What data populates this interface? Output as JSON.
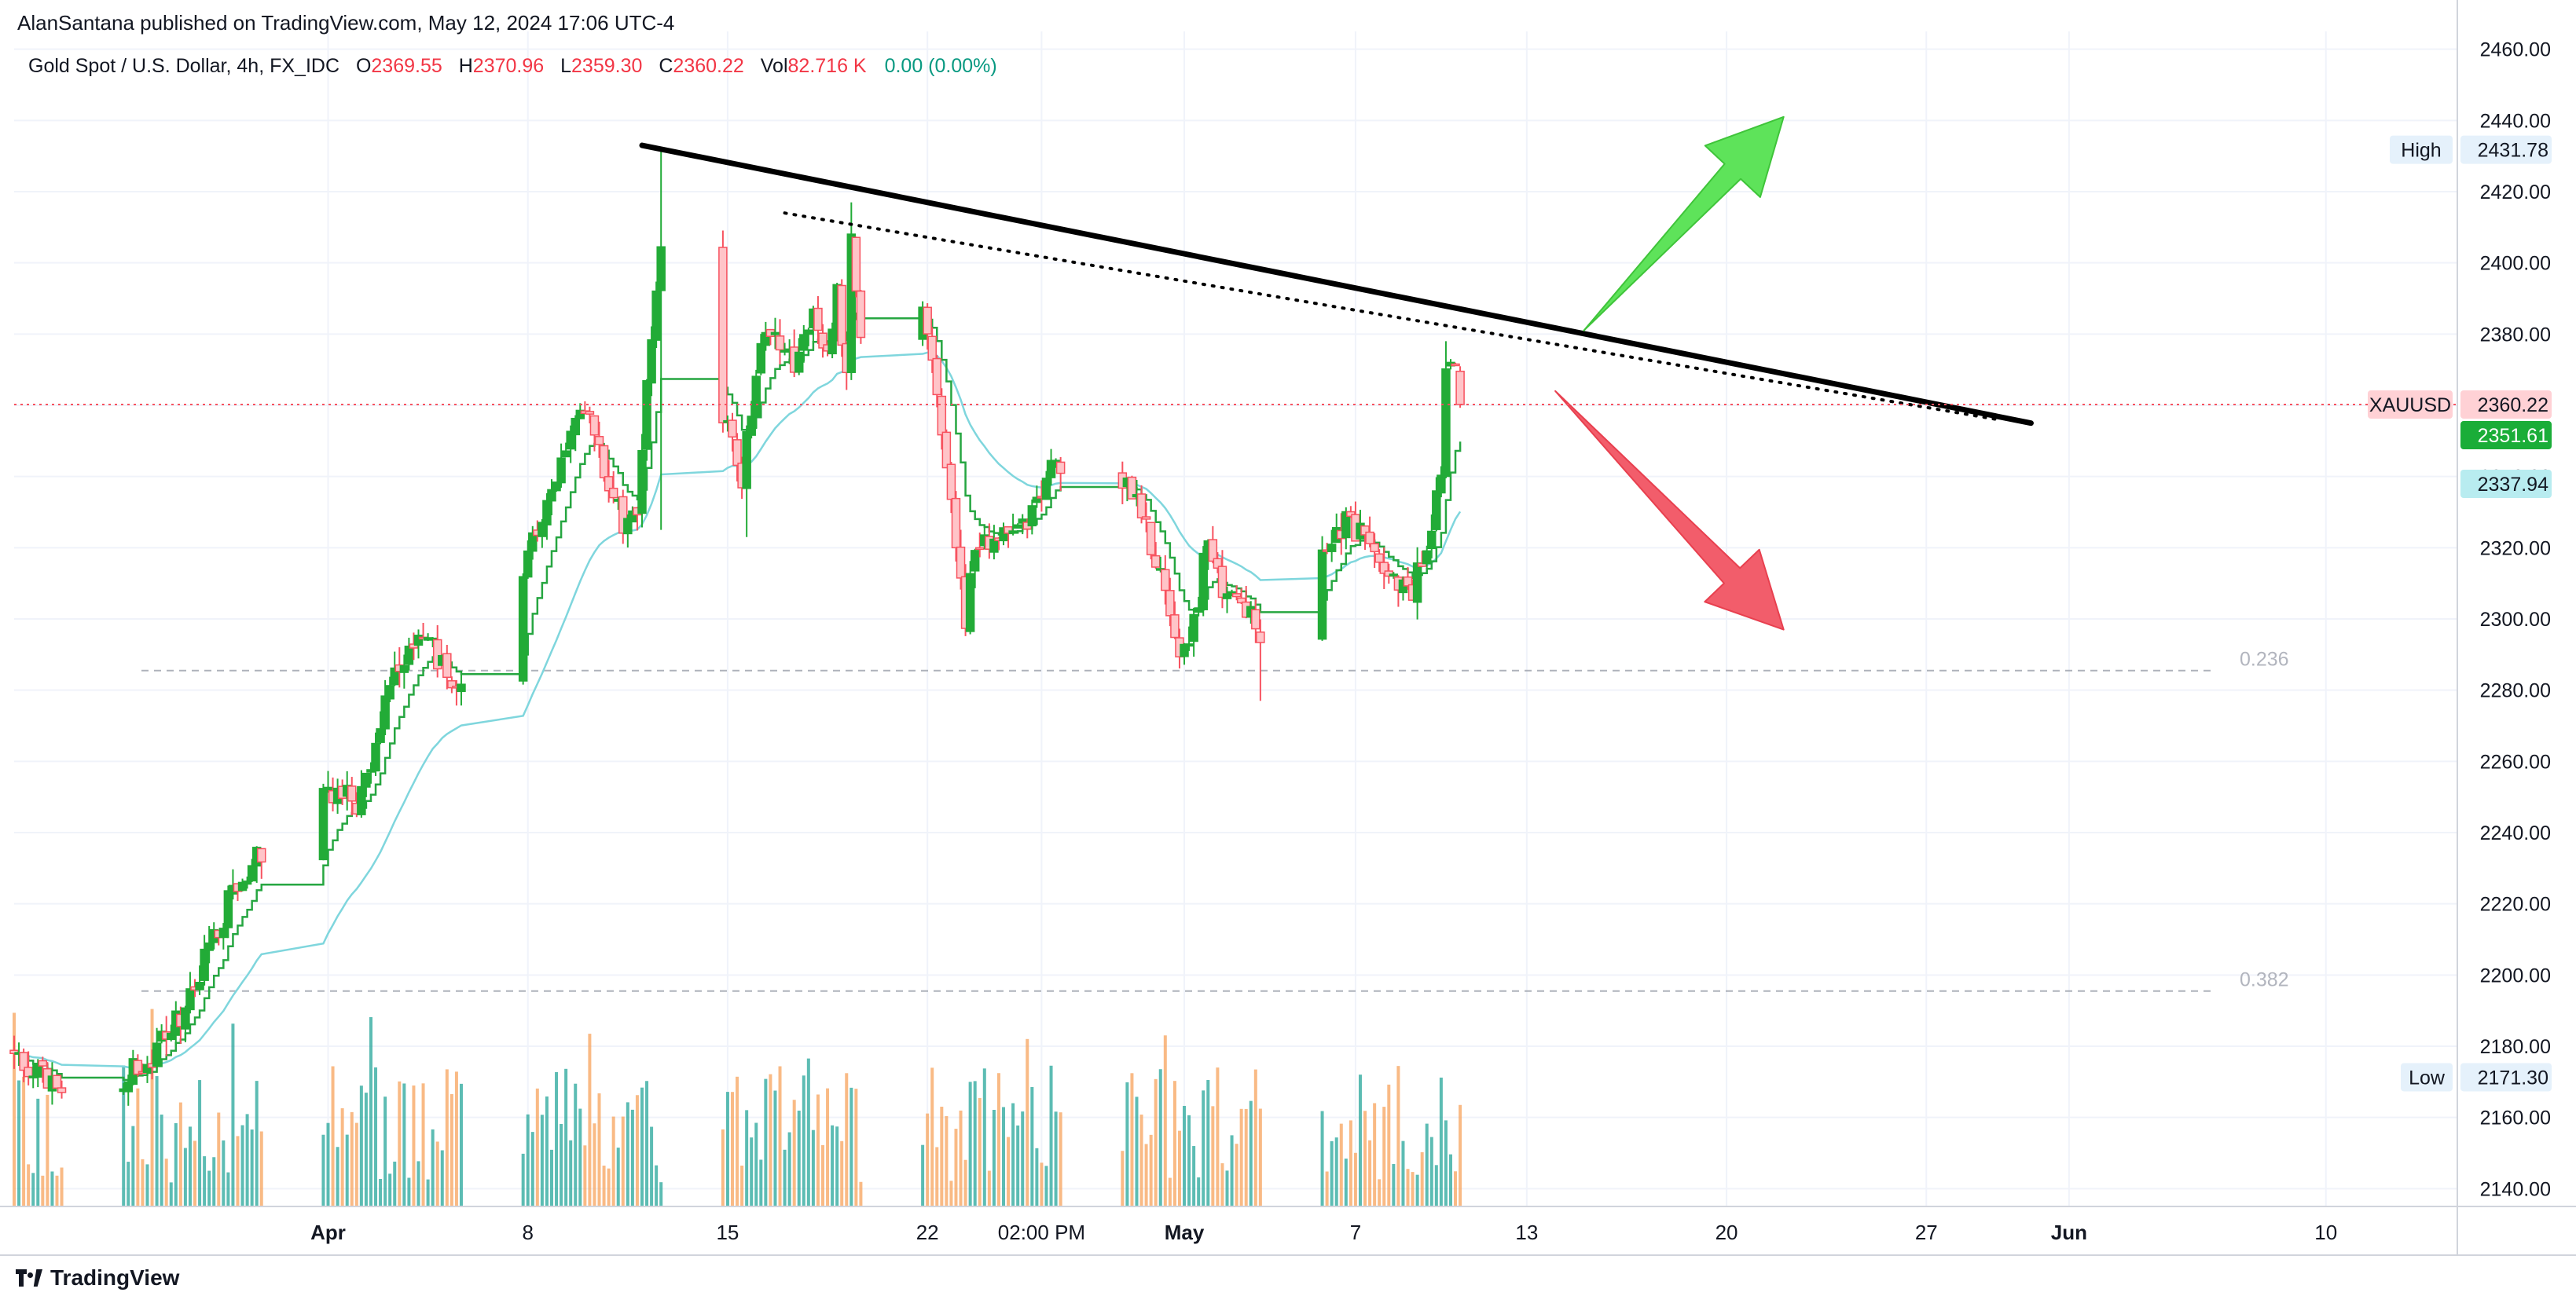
{
  "header": {
    "published_by": "AlanSantana published on TradingView.com, May 12, 2024 17:06 UTC-4"
  },
  "legend": {
    "symbol_desc": "Gold Spot / U.S. Dollar, 4h, FX_IDC",
    "o_label": "O",
    "o_value": "2369.55",
    "h_label": "H",
    "h_value": "2370.96",
    "l_label": "L",
    "l_value": "2359.30",
    "c_label": "C",
    "c_value": "2360.22",
    "vol_label": "Vol",
    "vol_value": "82.716 K",
    "change": "0.00 (0.00%)"
  },
  "brand": {
    "name": "TradingView",
    "icon": "tradingview-logo-icon"
  },
  "colors": {
    "up": "#22ab37",
    "down": "#f7525f",
    "down_body": "#ffc4c8",
    "vol_up": "#26a69a",
    "vol_down": "#f7a35c",
    "ma_fast": "#26a641",
    "ma_slow": "#7fd6dd",
    "arrow_up": "#5ee35a",
    "arrow_down": "#f25d6b",
    "fib": "#9aa0aa",
    "price_line": "#f7525f"
  },
  "chart_data": {
    "type": "candlestick",
    "symbol": "XAUUSD",
    "interval": "4h",
    "ylim": [
      2135,
      2465
    ],
    "y_ticks": [
      2140,
      2160,
      2180,
      2200,
      2220,
      2240,
      2260,
      2280,
      2300,
      2320,
      2340,
      2360,
      2380,
      2400,
      2420,
      2440,
      2460
    ],
    "x_tick_labels": [
      {
        "label": "Apr",
        "date": "2024-04-01",
        "bold": true
      },
      {
        "label": "8",
        "date": "2024-04-08",
        "bold": false
      },
      {
        "label": "15",
        "date": "2024-04-15",
        "bold": false
      },
      {
        "label": "22",
        "date": "2024-04-22",
        "bold": false
      },
      {
        "label": "02:00 PM",
        "date": "2024-04-26",
        "bold": false
      },
      {
        "label": "May",
        "date": "2024-05-01",
        "bold": true
      },
      {
        "label": "7",
        "date": "2024-05-07",
        "bold": false
      },
      {
        "label": "13",
        "date": "2024-05-13",
        "bold": false
      },
      {
        "label": "20",
        "date": "2024-05-20",
        "bold": false
      },
      {
        "label": "27",
        "date": "2024-05-27",
        "bold": false
      },
      {
        "label": "Jun",
        "date": "2024-06-01",
        "bold": true
      },
      {
        "label": "10",
        "date": "2024-06-10",
        "bold": false
      }
    ],
    "price_badges": [
      {
        "label": "High",
        "value": "2431.78",
        "price": 2431.78,
        "style": "neutral"
      },
      {
        "label": "XAUUSD",
        "value": "2360.22",
        "price": 2360.22,
        "style": "last"
      },
      {
        "label": "",
        "value": "2351.61",
        "price": 2351.61,
        "style": "ma_fast"
      },
      {
        "label": "",
        "value": "2337.94",
        "price": 2337.94,
        "style": "ma_slow"
      },
      {
        "label": "Low",
        "value": "2171.30",
        "price": 2171.3,
        "style": "neutral"
      }
    ],
    "fib_levels": [
      {
        "label": "0.236",
        "price": 2285.5
      },
      {
        "label": "0.382",
        "price": 2195.5
      }
    ],
    "trendlines": [
      {
        "style": "solid",
        "from": {
          "date": "2024-04-12T00:00",
          "price": 2433
        },
        "to": {
          "date": "2024-05-30T16:00",
          "price": 2355
        }
      },
      {
        "style": "dotted",
        "from": {
          "date": "2024-04-17T00:00",
          "price": 2414
        },
        "to": {
          "date": "2024-05-29T12:00",
          "price": 2356
        }
      }
    ],
    "arrows": [
      {
        "direction": "up",
        "from": {
          "date": "2024-05-15T00:00",
          "price": 2381
        },
        "to": {
          "date": "2024-05-22T00:00",
          "price": 2441
        }
      },
      {
        "direction": "down",
        "from": {
          "date": "2024-05-14T00:00",
          "price": 2364
        },
        "to": {
          "date": "2024-05-22T00:00",
          "price": 2297
        }
      }
    ],
    "anchors": [
      {
        "date": "2024-03-21T00:00",
        "close": 2178
      },
      {
        "date": "2024-03-22T12:00",
        "close": 2166
      },
      {
        "date": "2024-03-25T12:00",
        "close": 2174
      },
      {
        "date": "2024-03-27T00:00",
        "close": 2190
      },
      {
        "date": "2024-03-28T12:00",
        "close": 2220
      },
      {
        "date": "2024-03-29T12:00",
        "close": 2232
      },
      {
        "date": "2024-04-01T00:00",
        "close": 2254
      },
      {
        "date": "2024-04-02T00:00",
        "close": 2247
      },
      {
        "date": "2024-04-03T00:00",
        "close": 2275
      },
      {
        "date": "2024-04-04T00:00",
        "close": 2296
      },
      {
        "date": "2024-04-05T00:00",
        "close": 2288
      },
      {
        "date": "2024-04-05T16:00",
        "close": 2279
      },
      {
        "date": "2024-04-07T20:00",
        "close": 2314
      },
      {
        "date": "2024-04-08T12:00",
        "close": 2330
      },
      {
        "date": "2024-04-09T08:00",
        "close": 2350
      },
      {
        "date": "2024-04-10T00:00",
        "close": 2362
      },
      {
        "date": "2024-04-10T16:00",
        "close": 2339
      },
      {
        "date": "2024-04-11T12:00",
        "close": 2325
      },
      {
        "date": "2024-04-11T20:00",
        "close": 2332
      },
      {
        "date": "2024-04-12T08:00",
        "close": 2378
      },
      {
        "date": "2024-04-12T16:00",
        "close": 2405
      },
      {
        "date": "2024-04-12T20:00",
        "close": 2345
      },
      {
        "date": "2024-04-14T20:00",
        "close": 2356
      },
      {
        "date": "2024-04-15T12:00",
        "close": 2340
      },
      {
        "date": "2024-04-16T08:00",
        "close": 2384
      },
      {
        "date": "2024-04-17T08:00",
        "close": 2372
      },
      {
        "date": "2024-04-17T20:00",
        "close": 2385
      },
      {
        "date": "2024-04-18T12:00",
        "close": 2378
      },
      {
        "date": "2024-04-18T20:00",
        "close": 2392
      },
      {
        "date": "2024-04-19T04:00",
        "close": 2367
      },
      {
        "date": "2024-04-19T08:00",
        "close": 2410
      },
      {
        "date": "2024-04-19T16:00",
        "close": 2382
      },
      {
        "date": "2024-04-21T20:00",
        "close": 2390
      },
      {
        "date": "2024-04-22T08:00",
        "close": 2366
      },
      {
        "date": "2024-04-22T20:00",
        "close": 2335
      },
      {
        "date": "2024-04-23T08:00",
        "close": 2298
      },
      {
        "date": "2024-04-23T16:00",
        "close": 2322
      },
      {
        "date": "2024-04-24T08:00",
        "close": 2318
      },
      {
        "date": "2024-04-25T00:00",
        "close": 2325
      },
      {
        "date": "2024-04-25T16:00",
        "close": 2331
      },
      {
        "date": "2024-04-26T08:00",
        "close": 2345
      },
      {
        "date": "2024-04-26T16:00",
        "close": 2338
      },
      {
        "date": "2024-04-29T00:00",
        "close": 2341
      },
      {
        "date": "2024-04-29T16:00",
        "close": 2325
      },
      {
        "date": "2024-04-30T08:00",
        "close": 2305
      },
      {
        "date": "2024-04-30T20:00",
        "close": 2288
      },
      {
        "date": "2024-05-01T08:00",
        "close": 2299
      },
      {
        "date": "2024-05-01T20:00",
        "close": 2322
      },
      {
        "date": "2024-05-02T12:00",
        "close": 2306
      },
      {
        "date": "2024-05-03T08:00",
        "close": 2299
      },
      {
        "date": "2024-05-03T16:00",
        "close": 2292
      },
      {
        "date": "2024-05-06T00:00",
        "close": 2318
      },
      {
        "date": "2024-05-06T16:00",
        "close": 2328
      },
      {
        "date": "2024-05-07T12:00",
        "close": 2320
      },
      {
        "date": "2024-05-08T08:00",
        "close": 2311
      },
      {
        "date": "2024-05-09T00:00",
        "close": 2309
      },
      {
        "date": "2024-05-09T16:00",
        "close": 2325
      },
      {
        "date": "2024-05-10T00:00",
        "close": 2341
      },
      {
        "date": "2024-05-10T04:00",
        "close": 2370
      },
      {
        "date": "2024-05-10T12:00",
        "close": 2374
      },
      {
        "date": "2024-05-10T16:00",
        "close": 2360.22
      }
    ]
  }
}
